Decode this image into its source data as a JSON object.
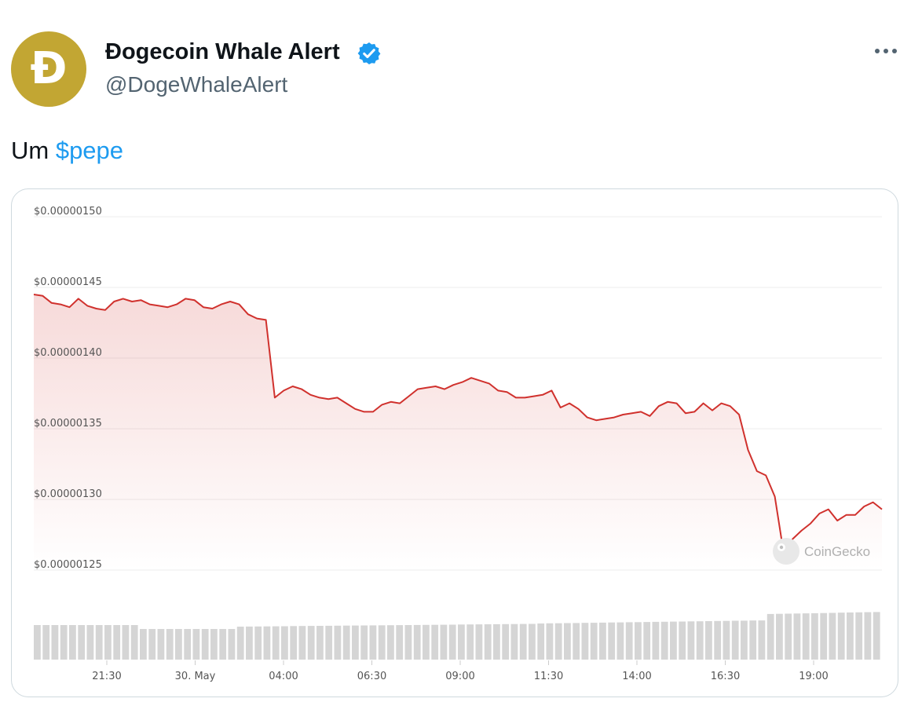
{
  "author": {
    "display_name": "Đogecoin Whale Alert",
    "handle": "@DogeWhaleAlert",
    "avatar_glyph": "Đ",
    "avatar_color": "#c2a633",
    "verified": true,
    "verified_color": "#1d9bf0"
  },
  "tweet": {
    "text_prefix": "Um ",
    "cashtag": "$pepe",
    "cashtag_color": "#1d9bf0"
  },
  "menu_icon": "more-horizontal-icon",
  "chart_data": {
    "type": "line",
    "title": "",
    "xlabel": "",
    "ylabel": "",
    "ylim": [
      1.25e-06,
      1.5e-06
    ],
    "y_ticks": [
      1.5e-06,
      1.45e-06,
      1.4e-06,
      1.35e-06,
      1.3e-06,
      1.25e-06
    ],
    "y_tick_labels": [
      "$0.00000150",
      "$0.00000145",
      "$0.00000140",
      "$0.00000135",
      "$0.00000130",
      "$0.00000125"
    ],
    "x_tick_labels": [
      "21:30",
      "30. May",
      "04:00",
      "06:30",
      "09:00",
      "11:30",
      "14:00",
      "16:30",
      "19:00"
    ],
    "line_color": "#d0312d",
    "grid": true,
    "watermark": "CoinGecko",
    "series": [
      {
        "values": [
          1.445,
          1.444,
          1.439,
          1.438,
          1.436,
          1.442,
          1.437,
          1.435,
          1.434,
          1.44,
          1.442,
          1.44,
          1.441,
          1.438,
          1.437,
          1.436,
          1.438,
          1.442,
          1.441,
          1.436,
          1.435,
          1.438,
          1.44,
          1.438,
          1.431,
          1.428,
          1.427,
          1.372,
          1.377,
          1.38,
          1.378,
          1.374,
          1.372,
          1.371,
          1.372,
          1.368,
          1.364,
          1.362,
          1.362,
          1.367,
          1.369,
          1.368,
          1.373,
          1.378,
          1.379,
          1.38,
          1.378,
          1.381,
          1.383,
          1.386,
          1.384,
          1.382,
          1.377,
          1.376,
          1.372,
          1.372,
          1.373,
          1.374,
          1.377,
          1.365,
          1.368,
          1.364,
          1.358,
          1.356,
          1.357,
          1.358,
          1.36,
          1.361,
          1.362,
          1.359,
          1.366,
          1.369,
          1.368,
          1.361,
          1.362,
          1.368,
          1.363,
          1.368,
          1.366,
          1.36,
          1.335,
          1.32,
          1.317,
          1.302,
          1.262,
          1.272,
          1.278,
          1.283,
          1.29,
          1.293,
          1.285,
          1.289,
          1.289,
          1.295,
          1.298,
          1.293
        ]
      }
    ],
    "volume_bars": 96
  }
}
